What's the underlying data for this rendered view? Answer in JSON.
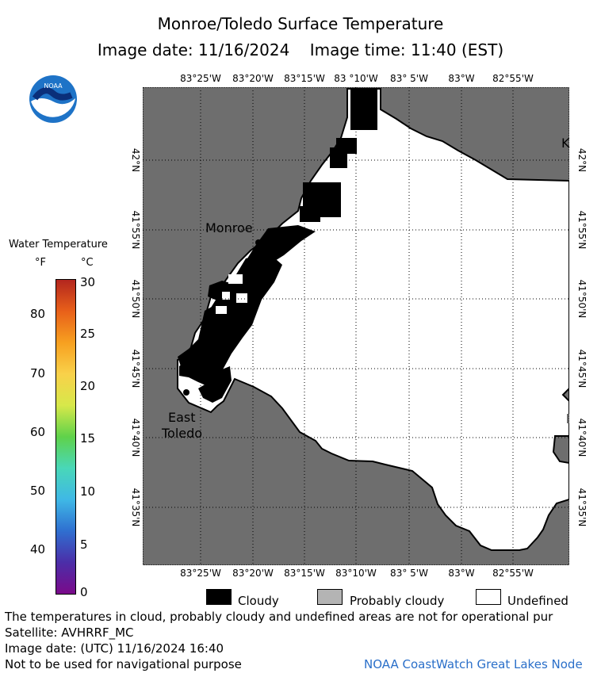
{
  "title": {
    "line1": "Monroe/Toledo Surface Temperature",
    "line2": "Image date: 11/16/2024    Image time: 11:40 (EST)"
  },
  "logo": {
    "text": "NOAA",
    "icon": "noaa-logo"
  },
  "colorbar": {
    "title": "Water Temperature",
    "unit_f": "°F",
    "unit_c": "°C",
    "f_ticks": [
      "80",
      "70",
      "60",
      "50",
      "40"
    ],
    "c_ticks": [
      "30",
      "25",
      "20",
      "15",
      "10",
      "5",
      "0"
    ],
    "colors": [
      "#7a0a8a",
      "#4b2ea8",
      "#2f6fd0",
      "#3fb8e6",
      "#49d7b8",
      "#5fd24a",
      "#d7e84a",
      "#f9d14a",
      "#f7a020",
      "#e8601a",
      "#b3261e"
    ]
  },
  "map": {
    "top_lon_labels": [
      "83°25'W",
      "83°20'W",
      "83°15'W",
      "83 °10'W",
      "83° 5'W",
      "83°W",
      "82°55'W"
    ],
    "bottom_lon_labels": [
      "83°25'W",
      "83°20'W",
      "83°15'W",
      "83°10'W",
      "83° 5'W",
      "83°W",
      "82°55'W"
    ],
    "lat_labels": [
      "42°N",
      "41°55'N",
      "41°50'N",
      "41°45'N",
      "41°40'N",
      "41°35'N"
    ],
    "places": [
      {
        "name": "Monroe"
      },
      {
        "name": "East"
      },
      {
        "name": "Toledo"
      },
      {
        "name": "K"
      }
    ],
    "colors": {
      "land": "#6e6e6e",
      "water": "#ffffff",
      "cloud": "#000000"
    }
  },
  "legend": {
    "items": [
      {
        "label": "Cloudy",
        "color": "#000000"
      },
      {
        "label": "Probably cloudy",
        "color": "#b4b4b4"
      },
      {
        "label": "Undefined",
        "color": "#ffffff"
      }
    ]
  },
  "footer": {
    "disclaimer": "The temperatures in cloud, probably cloudy and undefined areas are not for operational pur",
    "satellite": "Satellite: AVHRRF_MC",
    "utc_date": "Image date: (UTC) 11/16/2024  16:40",
    "nav_note": "Not to be used for navigational purpose",
    "credit": "NOAA CoastWatch Great Lakes Node"
  }
}
